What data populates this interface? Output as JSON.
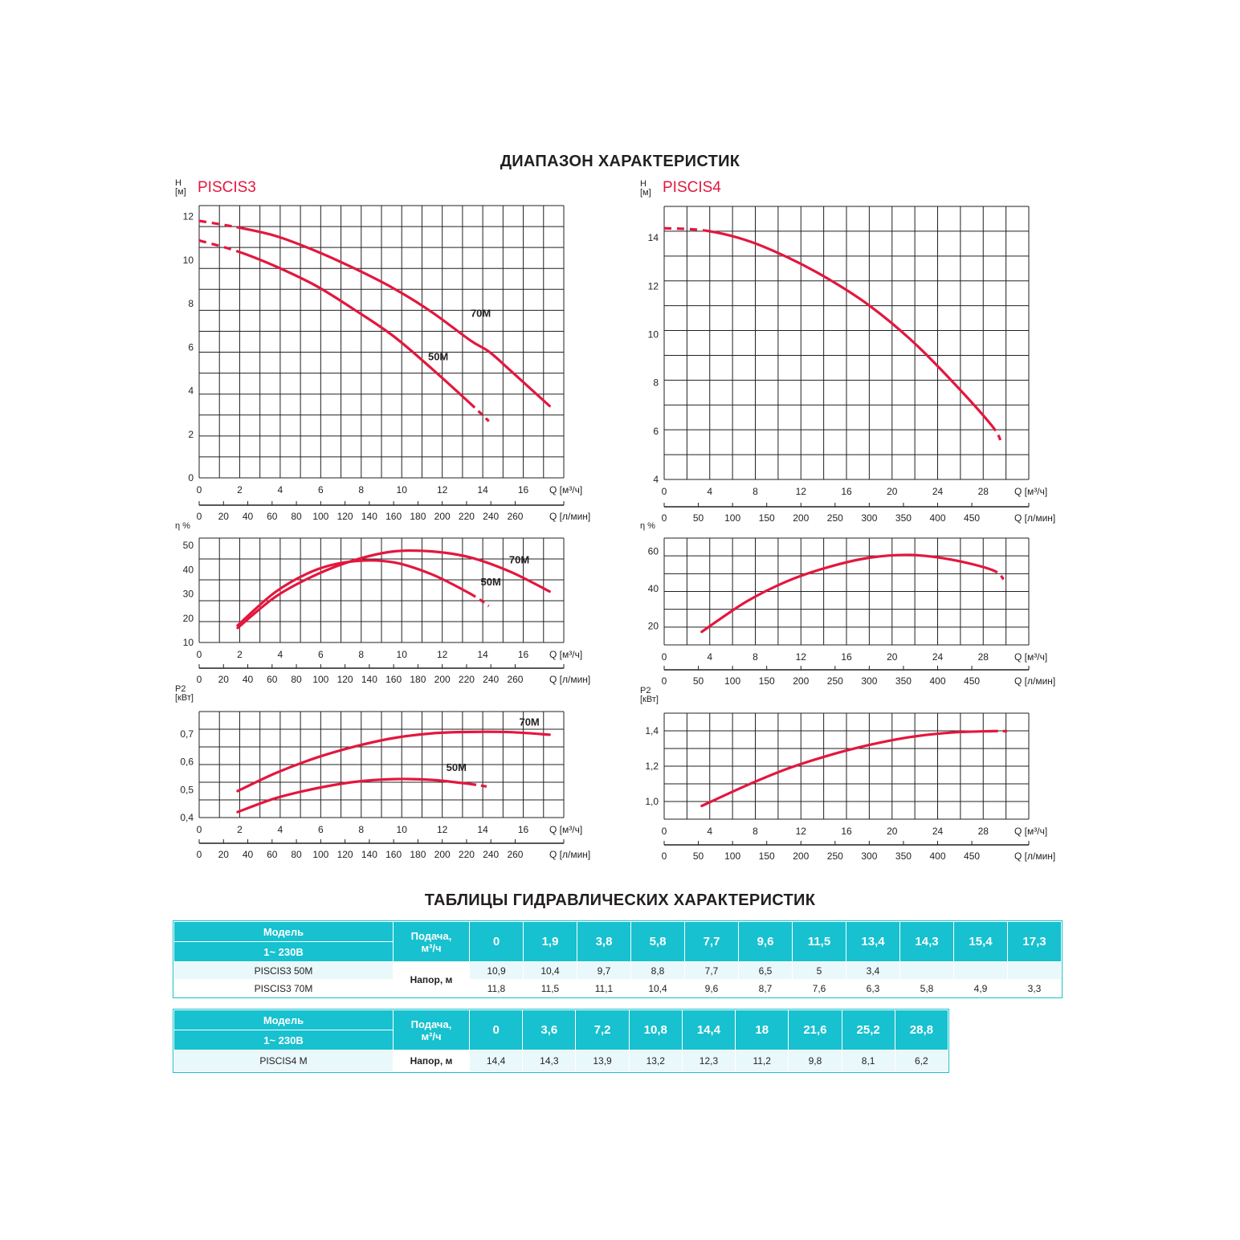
{
  "page": {
    "title_top": "ДИАПАЗОН ХАРАКТЕРИСТИК",
    "title_tables": "ТАБЛИЦЫ ГИДРАВЛИЧЕСКИХ ХАРАКТЕРИСТИК"
  },
  "colors": {
    "curve": "#e3173e",
    "grid": "#231f20",
    "table_header": "#17c1cf",
    "table_row": "#e9f8fa"
  },
  "chart_data": [
    {
      "type": "line",
      "id": "p3-head",
      "title": "PISCIS3",
      "ylabel": [
        "H",
        "[м]"
      ],
      "xlabel": "Q [м³/ч]",
      "x2label": "Q [л/мин]",
      "xlim": [
        0,
        18
      ],
      "ylim": [
        0,
        12.5
      ],
      "xticks": [
        0,
        2,
        4,
        6,
        8,
        10,
        12,
        14,
        16
      ],
      "yticks": [
        0,
        2,
        4,
        6,
        8,
        10,
        12
      ],
      "x2ticks": [
        0,
        20,
        40,
        60,
        80,
        100,
        120,
        140,
        160,
        180,
        200,
        220,
        240,
        260
      ],
      "x2max": 300,
      "series": [
        {
          "name": "70M",
          "x": [
            0,
            1.9,
            3.8,
            5.8,
            7.7,
            9.6,
            11.5,
            13.4,
            14.3,
            15.4,
            17.3
          ],
          "y": [
            11.8,
            11.5,
            11.1,
            10.4,
            9.6,
            8.7,
            7.6,
            6.3,
            5.8,
            4.9,
            3.3
          ],
          "dashed_until": 1.9,
          "label_at": [
            13.9,
            7.4
          ]
        },
        {
          "name": "50M",
          "x": [
            0,
            1.9,
            3.8,
            5.8,
            7.7,
            9.6,
            11.5,
            13.4,
            14.3
          ],
          "y": [
            10.9,
            10.4,
            9.7,
            8.8,
            7.7,
            6.5,
            5,
            3.4,
            2.6
          ],
          "dashed_until": 1.9,
          "dashed_from": 13.4,
          "label_at": [
            11.8,
            5.4
          ]
        }
      ]
    },
    {
      "type": "line",
      "id": "p4-head",
      "title": "PISCIS4",
      "ylabel": [
        "H",
        "[м]"
      ],
      "xlabel": "Q [м³/ч]",
      "x2label": "Q [л/мин]",
      "xlim": [
        0,
        32
      ],
      "ylim": [
        4,
        15.3
      ],
      "xticks": [
        0,
        4,
        8,
        12,
        16,
        20,
        24,
        28
      ],
      "yticks": [
        4,
        6,
        8,
        10,
        12,
        14
      ],
      "x2ticks": [
        0,
        50,
        100,
        150,
        200,
        250,
        300,
        350,
        400,
        450
      ],
      "x2max": 533.33,
      "series": [
        {
          "name": "",
          "x": [
            0,
            3.6,
            7.2,
            10.8,
            14.4,
            18,
            21.6,
            25.2,
            28.8,
            29.6
          ],
          "y": [
            14.4,
            14.3,
            13.9,
            13.2,
            12.3,
            11.2,
            9.8,
            8.1,
            6.2,
            5.5
          ],
          "dashed_until": 3.6,
          "dashed_from": 28.8
        }
      ]
    },
    {
      "type": "line",
      "id": "p3-eff",
      "ylabel": [
        "η %"
      ],
      "xlabel": "Q [м³/ч]",
      "x2label": "Q [л/мин]",
      "xlim": [
        0,
        18
      ],
      "ylim": [
        10,
        53
      ],
      "xticks": [
        0,
        2,
        4,
        6,
        8,
        10,
        12,
        14,
        16
      ],
      "yticks": [
        10,
        20,
        30,
        40,
        50
      ],
      "x2ticks": [
        0,
        20,
        40,
        60,
        80,
        100,
        120,
        140,
        160,
        180,
        200,
        220,
        240,
        260
      ],
      "x2max": 300,
      "series": [
        {
          "name": "70M",
          "x": [
            1.9,
            3.8,
            5.8,
            7.7,
            9.6,
            11.5,
            13.4,
            15.4,
            17.3
          ],
          "y": [
            16,
            29,
            38,
            44,
            47.5,
            47.5,
            45,
            39,
            31
          ],
          "label_at": [
            15.8,
            42.5
          ]
        },
        {
          "name": "50M",
          "x": [
            1.9,
            3.8,
            5.8,
            7.7,
            9.6,
            11.5,
            13.4,
            14.3
          ],
          "y": [
            17,
            31,
            40,
            43.5,
            43,
            38,
            30,
            25
          ],
          "dashed_from": 13.4,
          "label_at": [
            14.4,
            33.5
          ]
        }
      ]
    },
    {
      "type": "line",
      "id": "p4-eff",
      "ylabel": [
        "η %"
      ],
      "xlabel": "Q [м³/ч]",
      "x2label": "Q [л/мин]",
      "xlim": [
        0,
        32
      ],
      "ylim": [
        10,
        67
      ],
      "xticks": [
        0,
        4,
        8,
        12,
        16,
        20,
        24,
        28
      ],
      "yticks": [
        20,
        40,
        60
      ],
      "x2ticks": [
        0,
        50,
        100,
        150,
        200,
        250,
        300,
        350,
        400,
        450
      ],
      "x2max": 533.33,
      "series": [
        {
          "name": "",
          "x": [
            3.3,
            7.2,
            10.8,
            14.4,
            18,
            21.6,
            25.2,
            28.8,
            29.8
          ],
          "y": [
            17,
            33,
            44,
            51.5,
            56.5,
            58,
            55.5,
            50,
            45
          ],
          "dashed_from": 28.8
        }
      ]
    },
    {
      "type": "line",
      "id": "p3-pow",
      "ylabel": [
        "P2",
        "[кВт]"
      ],
      "xlabel": "Q [м³/ч]",
      "x2label": "Q [л/мин]",
      "xlim": [
        0,
        18
      ],
      "ylim": [
        0.4,
        0.78
      ],
      "xticks": [
        0,
        2,
        4,
        6,
        8,
        10,
        12,
        14,
        16
      ],
      "yticks": [
        0.4,
        0.5,
        0.6,
        0.7
      ],
      "yticklabels": [
        "0,4",
        "0,5",
        "0,6",
        "0,7"
      ],
      "x2ticks": [
        0,
        20,
        40,
        60,
        80,
        100,
        120,
        140,
        160,
        180,
        200,
        220,
        240,
        260
      ],
      "x2max": 300,
      "series": [
        {
          "name": "70M",
          "x": [
            1.9,
            3.8,
            5.8,
            7.7,
            9.6,
            11.5,
            13.4,
            15.4,
            17.3
          ],
          "y": [
            0.495,
            0.56,
            0.615,
            0.655,
            0.685,
            0.702,
            0.707,
            0.706,
            0.697
          ],
          "label_at": [
            16.3,
            0.73
          ]
        },
        {
          "name": "50M",
          "x": [
            1.9,
            3.8,
            5.8,
            7.7,
            9.6,
            11.5,
            13.4,
            14.3
          ],
          "y": [
            0.42,
            0.47,
            0.505,
            0.528,
            0.538,
            0.535,
            0.52,
            0.51
          ],
          "dashed_from": 13.4,
          "label_at": [
            12.7,
            0.567
          ]
        }
      ]
    },
    {
      "type": "line",
      "id": "p4-pow",
      "ylabel": [
        "P2",
        "[кВт]"
      ],
      "xlabel": "Q [м³/ч]",
      "x2label": "Q [л/мин]",
      "xlim": [
        0,
        32
      ],
      "ylim": [
        0.9,
        1.5
      ],
      "xticks": [
        0,
        4,
        8,
        12,
        16,
        20,
        24,
        28
      ],
      "yticks": [
        1.0,
        1.2,
        1.4
      ],
      "yticklabels": [
        "1,0",
        "1,2",
        "1,4"
      ],
      "x2ticks": [
        0,
        50,
        100,
        150,
        200,
        250,
        300,
        350,
        400,
        450
      ],
      "x2max": 533.33,
      "series": [
        {
          "name": "",
          "x": [
            3.3,
            7.2,
            10.8,
            14.4,
            18,
            21.6,
            25.2,
            28.8,
            30.1
          ],
          "y": [
            0.975,
            1.09,
            1.185,
            1.26,
            1.32,
            1.365,
            1.39,
            1.398,
            1.398
          ],
          "dashed_from": 28.8
        }
      ]
    }
  ],
  "tables": [
    {
      "model_label": "Модель",
      "voltage_label": "1~ 230В",
      "flow_label": [
        "Подача,",
        "м³/ч"
      ],
      "head_label": "Напор, м",
      "flows": [
        "0",
        "1,9",
        "3,8",
        "5,8",
        "7,7",
        "9,6",
        "11,5",
        "13,4",
        "14,3",
        "15,4",
        "17,3"
      ],
      "rows": [
        {
          "model": "PISCIS3 50M",
          "values": [
            "10,9",
            "10,4",
            "9,7",
            "8,8",
            "7,7",
            "6,5",
            "5",
            "3,4",
            "",
            "",
            ""
          ]
        },
        {
          "model": "PISCIS3 70M",
          "values": [
            "11,8",
            "11,5",
            "11,1",
            "10,4",
            "9,6",
            "8,7",
            "7,6",
            "6,3",
            "5,8",
            "4,9",
            "3,3"
          ]
        }
      ]
    },
    {
      "model_label": "Модель",
      "voltage_label": "1~ 230В",
      "flow_label": [
        "Подача,",
        "м³/ч"
      ],
      "head_label": "Напор, м",
      "flows": [
        "0",
        "3,6",
        "7,2",
        "10,8",
        "14,4",
        "18",
        "21,6",
        "25,2",
        "28,8"
      ],
      "rows": [
        {
          "model": "PISCIS4 M",
          "values": [
            "14,4",
            "14,3",
            "13,9",
            "13,2",
            "12,3",
            "11,2",
            "9,8",
            "8,1",
            "6,2"
          ]
        }
      ]
    }
  ]
}
